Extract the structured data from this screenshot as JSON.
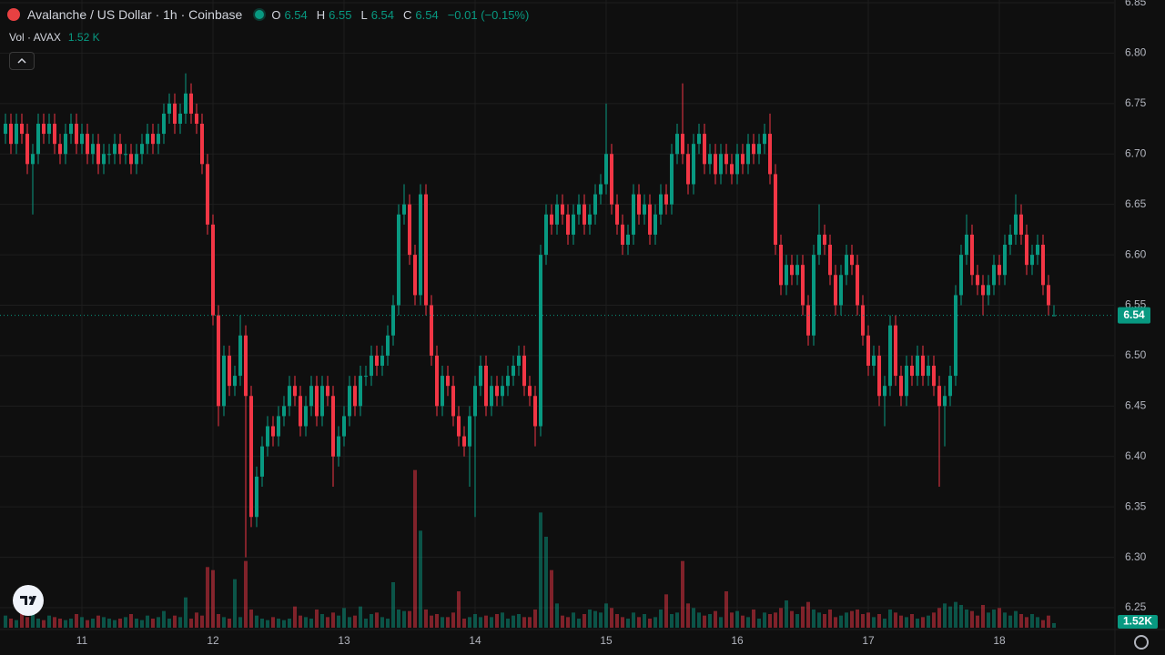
{
  "header": {
    "symbol": "Avalanche / US Dollar · 1h · Coinbase",
    "ohlc": [
      {
        "label": "O",
        "value": "6.54"
      },
      {
        "label": "H",
        "value": "6.55"
      },
      {
        "label": "L",
        "value": "6.54"
      },
      {
        "label": "C",
        "value": "6.54"
      }
    ],
    "change": "−0.01 (−0.15%)"
  },
  "volume_legend": {
    "label": "Vol · AVAX",
    "value": "1.52 K"
  },
  "chart_data": {
    "type": "candlestick",
    "up_color": "#089981",
    "down_color": "#f23645",
    "grid": true,
    "xlim": [
      -1,
      203
    ],
    "xticks": [
      {
        "value": 14,
        "label": "11"
      },
      {
        "value": 38,
        "label": "12"
      },
      {
        "value": 62,
        "label": "13"
      },
      {
        "value": 86,
        "label": "14"
      },
      {
        "value": 110,
        "label": "15"
      },
      {
        "value": 134,
        "label": "16"
      },
      {
        "value": 158,
        "label": "17"
      },
      {
        "value": 182,
        "label": "18"
      }
    ],
    "ylim": [
      6.25,
      6.85
    ],
    "yticks": [
      6.25,
      {
        "value": 6.3,
        "label": "6.30"
      },
      6.35,
      {
        "value": 6.4,
        "label": "6.40"
      },
      6.45,
      {
        "value": 6.5,
        "label": "6.50"
      },
      6.55,
      {
        "value": 6.6,
        "label": "6.60"
      },
      6.65,
      {
        "value": 6.7,
        "label": "6.70"
      },
      6.75,
      {
        "value": 6.8,
        "label": "6.80"
      },
      6.85
    ],
    "vlim": [
      0,
      60000
    ],
    "last_price": {
      "value": 6.54,
      "label": "6.54"
    },
    "last_volume": {
      "value": 1520,
      "label": "1.52K"
    },
    "open": [
      6.72,
      6.73,
      6.71,
      6.73,
      6.72,
      6.69,
      6.7,
      6.73,
      6.72,
      6.73,
      6.71,
      6.7,
      6.72,
      6.73,
      6.71,
      6.72,
      6.7,
      6.71,
      6.69,
      6.7,
      6.7,
      6.71,
      6.7,
      6.7,
      6.69,
      6.7,
      6.71,
      6.72,
      6.71,
      6.72,
      6.74,
      6.75,
      6.73,
      6.74,
      6.76,
      6.74,
      6.73,
      6.69,
      6.63,
      6.54,
      6.45,
      6.5,
      6.47,
      6.48,
      6.52,
      6.46,
      6.34,
      6.38,
      6.41,
      6.43,
      6.42,
      6.44,
      6.45,
      6.47,
      6.46,
      6.43,
      6.45,
      6.47,
      6.44,
      6.47,
      6.46,
      6.4,
      6.42,
      6.44,
      6.47,
      6.45,
      6.48,
      6.48,
      6.5,
      6.49,
      6.5,
      6.52,
      6.55,
      6.64,
      6.65,
      6.6,
      6.56,
      6.66,
      6.55,
      6.5,
      6.45,
      6.48,
      6.47,
      6.44,
      6.42,
      6.41,
      6.44,
      6.47,
      6.49,
      6.45,
      6.47,
      6.46,
      6.47,
      6.48,
      6.49,
      6.5,
      6.47,
      6.46,
      6.43,
      6.6,
      6.64,
      6.63,
      6.65,
      6.64,
      6.62,
      6.64,
      6.65,
      6.63,
      6.64,
      6.66,
      6.67,
      6.7,
      6.65,
      6.63,
      6.61,
      6.62,
      6.66,
      6.64,
      6.65,
      6.62,
      6.64,
      6.66,
      6.65,
      6.7,
      6.72,
      6.7,
      6.67,
      6.71,
      6.72,
      6.69,
      6.7,
      6.68,
      6.7,
      6.69,
      6.68,
      6.7,
      6.69,
      6.71,
      6.7,
      6.71,
      6.72,
      6.68,
      6.61,
      6.57,
      6.59,
      6.58,
      6.59,
      6.55,
      6.52,
      6.6,
      6.62,
      6.61,
      6.58,
      6.55,
      6.58,
      6.6,
      6.59,
      6.55,
      6.52,
      6.49,
      6.5,
      6.46,
      6.47,
      6.53,
      6.48,
      6.46,
      6.49,
      6.48,
      6.5,
      6.48,
      6.49,
      6.47,
      6.45,
      6.46,
      6.48,
      6.56,
      6.6,
      6.62,
      6.58,
      6.57,
      6.56,
      6.57,
      6.59,
      6.58,
      6.61,
      6.62,
      6.64,
      6.62,
      6.59,
      6.6,
      6.61,
      6.57,
      6.54
    ],
    "high": [
      6.74,
      6.74,
      6.74,
      6.74,
      6.73,
      6.71,
      6.74,
      6.74,
      6.74,
      6.74,
      6.72,
      6.73,
      6.74,
      6.74,
      6.73,
      6.73,
      6.72,
      6.72,
      6.71,
      6.71,
      6.72,
      6.72,
      6.71,
      6.71,
      6.71,
      6.72,
      6.73,
      6.73,
      6.73,
      6.75,
      6.76,
      6.76,
      6.75,
      6.78,
      6.77,
      6.75,
      6.74,
      6.7,
      6.64,
      6.55,
      6.51,
      6.51,
      6.49,
      6.54,
      6.53,
      6.47,
      6.39,
      6.42,
      6.44,
      6.44,
      6.45,
      6.46,
      6.48,
      6.48,
      6.47,
      6.46,
      6.48,
      6.48,
      6.48,
      6.48,
      6.47,
      6.43,
      6.45,
      6.48,
      6.48,
      6.49,
      6.49,
      6.51,
      6.51,
      6.51,
      6.53,
      6.56,
      6.65,
      6.67,
      6.66,
      6.61,
      6.67,
      6.67,
      6.56,
      6.51,
      6.49,
      6.49,
      6.48,
      6.45,
      6.43,
      6.45,
      6.48,
      6.5,
      6.5,
      6.48,
      6.48,
      6.48,
      6.49,
      6.5,
      6.51,
      6.51,
      6.48,
      6.47,
      6.61,
      6.65,
      6.65,
      6.66,
      6.66,
      6.65,
      6.65,
      6.66,
      6.66,
      6.65,
      6.67,
      6.68,
      6.75,
      6.71,
      6.66,
      6.64,
      6.63,
      6.67,
      6.67,
      6.66,
      6.66,
      6.65,
      6.67,
      6.67,
      6.71,
      6.73,
      6.77,
      6.71,
      6.72,
      6.73,
      6.73,
      6.71,
      6.71,
      6.71,
      6.71,
      6.7,
      6.71,
      6.71,
      6.72,
      6.72,
      6.72,
      6.73,
      6.74,
      6.69,
      6.62,
      6.6,
      6.6,
      6.6,
      6.6,
      6.56,
      6.61,
      6.65,
      6.63,
      6.62,
      6.59,
      6.59,
      6.61,
      6.61,
      6.6,
      6.56,
      6.53,
      6.51,
      6.51,
      6.48,
      6.54,
      6.54,
      6.49,
      6.5,
      6.5,
      6.51,
      6.51,
      6.5,
      6.5,
      6.48,
      6.47,
      6.49,
      6.57,
      6.61,
      6.64,
      6.63,
      6.59,
      6.58,
      6.58,
      6.6,
      6.6,
      6.62,
      6.63,
      6.66,
      6.65,
      6.63,
      6.61,
      6.62,
      6.62,
      6.58,
      6.55
    ],
    "low": [
      6.71,
      6.7,
      6.7,
      6.71,
      6.68,
      6.64,
      6.69,
      6.71,
      6.71,
      6.7,
      6.69,
      6.69,
      6.71,
      6.7,
      6.7,
      6.69,
      6.69,
      6.68,
      6.68,
      6.69,
      6.69,
      6.69,
      6.69,
      6.68,
      6.68,
      6.69,
      6.7,
      6.7,
      6.7,
      6.71,
      6.73,
      6.72,
      6.72,
      6.73,
      6.73,
      6.72,
      6.68,
      6.62,
      6.53,
      6.43,
      6.44,
      6.46,
      6.46,
      6.47,
      6.3,
      6.33,
      6.33,
      6.37,
      6.4,
      6.41,
      6.41,
      6.43,
      6.44,
      6.45,
      6.42,
      6.42,
      6.44,
      6.43,
      6.43,
      6.45,
      6.37,
      6.39,
      6.41,
      6.43,
      6.44,
      6.44,
      6.47,
      6.47,
      6.48,
      6.48,
      6.49,
      6.51,
      6.54,
      6.63,
      6.59,
      6.55,
      6.55,
      6.54,
      6.49,
      6.44,
      6.44,
      6.46,
      6.43,
      6.41,
      6.4,
      6.37,
      6.34,
      6.46,
      6.44,
      6.44,
      6.45,
      6.45,
      6.46,
      6.47,
      6.48,
      6.46,
      6.45,
      6.41,
      6.42,
      6.59,
      6.62,
      6.62,
      6.63,
      6.61,
      6.61,
      6.63,
      6.62,
      6.62,
      6.63,
      6.65,
      6.66,
      6.64,
      6.62,
      6.6,
      6.6,
      6.61,
      6.63,
      6.63,
      6.61,
      6.61,
      6.63,
      6.64,
      6.64,
      6.69,
      6.69,
      6.66,
      6.66,
      6.7,
      6.68,
      6.68,
      6.67,
      6.67,
      6.68,
      6.67,
      6.67,
      6.68,
      6.68,
      6.69,
      6.69,
      6.7,
      6.67,
      6.6,
      6.56,
      6.56,
      6.57,
      6.57,
      6.54,
      6.51,
      6.51,
      6.59,
      6.6,
      6.57,
      6.54,
      6.54,
      6.57,
      6.58,
      6.54,
      6.51,
      6.48,
      6.48,
      6.45,
      6.43,
      6.46,
      6.47,
      6.45,
      6.45,
      6.47,
      6.47,
      6.47,
      6.47,
      6.46,
      6.37,
      6.41,
      6.45,
      6.47,
      6.55,
      6.59,
      6.57,
      6.56,
      6.54,
      6.55,
      6.56,
      6.57,
      6.57,
      6.6,
      6.61,
      6.61,
      6.58,
      6.58,
      6.59,
      6.56,
      6.54,
      6.54
    ],
    "close": [
      6.73,
      6.71,
      6.73,
      6.72,
      6.69,
      6.7,
      6.73,
      6.72,
      6.73,
      6.71,
      6.7,
      6.72,
      6.73,
      6.71,
      6.72,
      6.7,
      6.71,
      6.69,
      6.7,
      6.7,
      6.71,
      6.7,
      6.7,
      6.69,
      6.7,
      6.71,
      6.72,
      6.71,
      6.72,
      6.74,
      6.75,
      6.73,
      6.74,
      6.76,
      6.74,
      6.73,
      6.69,
      6.63,
      6.54,
      6.45,
      6.5,
      6.47,
      6.48,
      6.52,
      6.46,
      6.34,
      6.38,
      6.41,
      6.43,
      6.42,
      6.44,
      6.45,
      6.47,
      6.46,
      6.43,
      6.45,
      6.47,
      6.44,
      6.47,
      6.46,
      6.4,
      6.42,
      6.44,
      6.47,
      6.45,
      6.48,
      6.48,
      6.5,
      6.49,
      6.5,
      6.52,
      6.55,
      6.64,
      6.65,
      6.6,
      6.56,
      6.66,
      6.55,
      6.5,
      6.45,
      6.48,
      6.47,
      6.44,
      6.42,
      6.41,
      6.44,
      6.47,
      6.49,
      6.45,
      6.47,
      6.46,
      6.47,
      6.48,
      6.49,
      6.5,
      6.47,
      6.46,
      6.43,
      6.6,
      6.64,
      6.63,
      6.65,
      6.64,
      6.62,
      6.64,
      6.65,
      6.63,
      6.64,
      6.66,
      6.67,
      6.7,
      6.65,
      6.63,
      6.61,
      6.62,
      6.66,
      6.64,
      6.65,
      6.62,
      6.64,
      6.66,
      6.65,
      6.7,
      6.72,
      6.7,
      6.67,
      6.71,
      6.72,
      6.69,
      6.7,
      6.68,
      6.7,
      6.69,
      6.68,
      6.7,
      6.69,
      6.71,
      6.7,
      6.71,
      6.72,
      6.68,
      6.61,
      6.57,
      6.59,
      6.58,
      6.59,
      6.55,
      6.52,
      6.6,
      6.62,
      6.61,
      6.58,
      6.55,
      6.58,
      6.6,
      6.59,
      6.55,
      6.52,
      6.49,
      6.5,
      6.46,
      6.47,
      6.53,
      6.48,
      6.46,
      6.49,
      6.48,
      6.5,
      6.48,
      6.49,
      6.47,
      6.45,
      6.46,
      6.48,
      6.56,
      6.6,
      6.62,
      6.58,
      6.57,
      6.56,
      6.57,
      6.59,
      6.58,
      6.61,
      6.62,
      6.64,
      6.62,
      6.59,
      6.6,
      6.61,
      6.57,
      6.55,
      6.54
    ],
    "volume": [
      4000,
      3000,
      2500,
      5000,
      3500,
      6000,
      3000,
      2500,
      4000,
      3500,
      3000,
      2500,
      3000,
      4500,
      3500,
      2500,
      3000,
      4000,
      3500,
      3000,
      2500,
      3000,
      3500,
      4500,
      3000,
      2500,
      4000,
      3000,
      3500,
      5500,
      3000,
      4000,
      3500,
      10000,
      3000,
      5000,
      4000,
      20000,
      19000,
      4500,
      3500,
      3000,
      16000,
      3500,
      22000,
      6000,
      4000,
      3000,
      2500,
      3500,
      3000,
      2500,
      3000,
      7000,
      4000,
      3500,
      3000,
      6000,
      4500,
      3500,
      5000,
      4000,
      6500,
      3500,
      4000,
      7000,
      3000,
      4500,
      5000,
      3500,
      3000,
      15000,
      6000,
      5500,
      5500,
      52000,
      32000,
      6000,
      4000,
      4500,
      3500,
      3500,
      5000,
      12000,
      3000,
      3500,
      4500,
      3500,
      4000,
      3500,
      4500,
      5000,
      3000,
      4000,
      4500,
      3500,
      3500,
      6000,
      38000,
      30000,
      19000,
      8000,
      4000,
      3500,
      5000,
      3000,
      4500,
      6000,
      5500,
      5000,
      8000,
      6500,
      4500,
      3500,
      3000,
      5000,
      3500,
      4500,
      3000,
      3500,
      6000,
      11000,
      4500,
      5000,
      22000,
      8000,
      6500,
      5000,
      4000,
      4500,
      5500,
      3500,
      12000,
      5000,
      5500,
      4000,
      3500,
      6000,
      3000,
      5000,
      4500,
      5000,
      6500,
      9000,
      5500,
      4500,
      7000,
      8500,
      6000,
      5000,
      4500,
      6000,
      3500,
      4000,
      5000,
      5500,
      6000,
      4500,
      5000,
      3500,
      4500,
      3000,
      6000,
      5000,
      4000,
      3500,
      4500,
      3000,
      3500,
      4000,
      5000,
      6500,
      8000,
      7000,
      8500,
      7500,
      6000,
      5500,
      4000,
      7500,
      5000,
      6000,
      6500,
      5000,
      4000,
      5500,
      4500,
      3500,
      4500,
      3500,
      2500,
      4000,
      1520
    ]
  }
}
